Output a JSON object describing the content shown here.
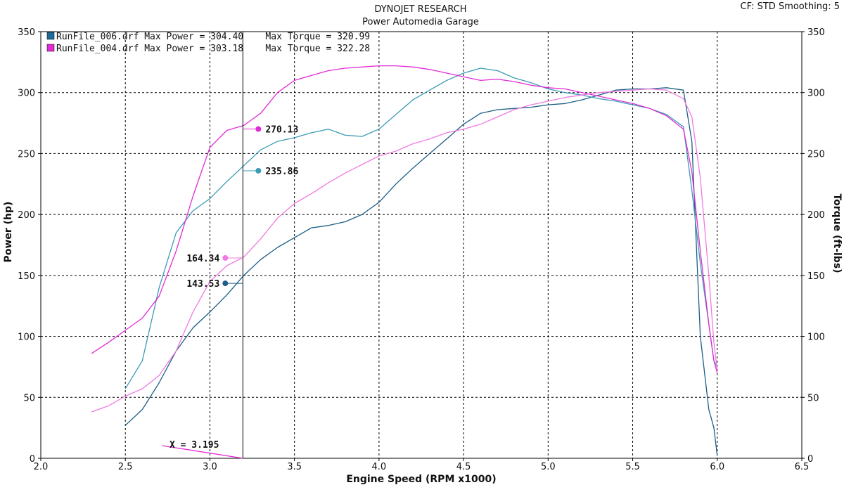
{
  "header": {
    "title": "DYNOJET RESEARCH",
    "subtitle": "Power Automedia Garage",
    "corner": "CF: STD  Smoothing: 5"
  },
  "legend": [
    {
      "swatch": "#1e6a9a",
      "text": "RunFile_006.drf Max Power = 304.40    Max Torque = 320.99"
    },
    {
      "swatch": "#e22ad6",
      "text": "RunFile_004.drf Max Power = 303.18    Max Torque = 322.28"
    }
  ],
  "cursor": {
    "label": "X = 3.195",
    "x": 3.195
  },
  "chart_data": {
    "type": "line",
    "xlabel": "Engine Speed (RPM x1000)",
    "ylabel_left": "Power (hp)",
    "ylabel_right": "Torque (ft-lbs)",
    "xlim": [
      2.0,
      6.5
    ],
    "ylim": [
      0,
      350
    ],
    "xticks": [
      "2.0",
      "2.5",
      "3.0",
      "3.5",
      "4.0",
      "4.5",
      "5.0",
      "5.5",
      "6.0",
      "6.5"
    ],
    "yticks": [
      "0",
      "50",
      "100",
      "150",
      "200",
      "250",
      "300",
      "350"
    ],
    "grid": true,
    "legend_position": "top-left",
    "series": [
      {
        "key": "r006_power",
        "color": "#1c5f86",
        "points": [
          [
            2.5,
            27
          ],
          [
            2.6,
            40
          ],
          [
            2.7,
            62
          ],
          [
            2.8,
            88
          ],
          [
            2.9,
            107
          ],
          [
            3.0,
            120
          ],
          [
            3.1,
            134
          ],
          [
            3.2,
            150
          ],
          [
            3.3,
            163
          ],
          [
            3.4,
            173
          ],
          [
            3.5,
            181
          ],
          [
            3.6,
            189
          ],
          [
            3.7,
            191
          ],
          [
            3.8,
            194
          ],
          [
            3.9,
            200
          ],
          [
            4.0,
            210
          ],
          [
            4.1,
            225
          ],
          [
            4.2,
            238
          ],
          [
            4.3,
            250
          ],
          [
            4.4,
            262
          ],
          [
            4.5,
            274
          ],
          [
            4.6,
            283
          ],
          [
            4.7,
            286
          ],
          [
            4.8,
            287
          ],
          [
            4.9,
            288
          ],
          [
            5.0,
            290
          ],
          [
            5.1,
            291
          ],
          [
            5.2,
            294
          ],
          [
            5.3,
            298
          ],
          [
            5.4,
            302
          ],
          [
            5.5,
            303
          ],
          [
            5.6,
            303
          ],
          [
            5.7,
            304
          ],
          [
            5.8,
            302
          ],
          [
            5.85,
            260
          ],
          [
            5.9,
            100
          ],
          [
            5.95,
            40
          ],
          [
            5.98,
            25
          ],
          [
            6.0,
            2
          ]
        ]
      },
      {
        "key": "r006_torque",
        "color": "#3a9bb5",
        "points": [
          [
            2.5,
            57
          ],
          [
            2.6,
            80
          ],
          [
            2.7,
            140
          ],
          [
            2.8,
            185
          ],
          [
            2.9,
            203
          ],
          [
            3.0,
            213
          ],
          [
            3.1,
            227
          ],
          [
            3.2,
            240
          ],
          [
            3.3,
            253
          ],
          [
            3.4,
            260
          ],
          [
            3.5,
            263
          ],
          [
            3.6,
            267
          ],
          [
            3.7,
            270
          ],
          [
            3.8,
            265
          ],
          [
            3.9,
            264
          ],
          [
            4.0,
            270
          ],
          [
            4.1,
            282
          ],
          [
            4.2,
            294
          ],
          [
            4.3,
            302
          ],
          [
            4.4,
            310
          ],
          [
            4.5,
            316
          ],
          [
            4.6,
            320
          ],
          [
            4.7,
            318
          ],
          [
            4.8,
            312
          ],
          [
            4.9,
            308
          ],
          [
            5.0,
            303
          ],
          [
            5.1,
            300
          ],
          [
            5.2,
            298
          ],
          [
            5.3,
            295
          ],
          [
            5.4,
            293
          ],
          [
            5.5,
            290
          ],
          [
            5.6,
            287
          ],
          [
            5.7,
            282
          ],
          [
            5.8,
            272
          ],
          [
            5.85,
            220
          ],
          [
            5.9,
            160
          ],
          [
            5.95,
            110
          ],
          [
            5.98,
            80
          ],
          [
            6.0,
            75
          ]
        ]
      },
      {
        "key": "r004_torque",
        "color": "#e22ad6",
        "points": [
          [
            2.3,
            86
          ],
          [
            2.4,
            95
          ],
          [
            2.5,
            105
          ],
          [
            2.6,
            115
          ],
          [
            2.7,
            133
          ],
          [
            2.8,
            170
          ],
          [
            2.9,
            215
          ],
          [
            3.0,
            255
          ],
          [
            3.1,
            269
          ],
          [
            3.2,
            273
          ],
          [
            3.3,
            283
          ],
          [
            3.4,
            300
          ],
          [
            3.5,
            310
          ],
          [
            3.6,
            314
          ],
          [
            3.7,
            318
          ],
          [
            3.8,
            320
          ],
          [
            3.9,
            321
          ],
          [
            4.0,
            322
          ],
          [
            4.1,
            322
          ],
          [
            4.2,
            321
          ],
          [
            4.3,
            319
          ],
          [
            4.4,
            316
          ],
          [
            4.5,
            313
          ],
          [
            4.6,
            310
          ],
          [
            4.7,
            311
          ],
          [
            4.8,
            309
          ],
          [
            4.9,
            306
          ],
          [
            5.0,
            304
          ],
          [
            5.1,
            303
          ],
          [
            5.2,
            300
          ],
          [
            5.3,
            297
          ],
          [
            5.4,
            294
          ],
          [
            5.5,
            291
          ],
          [
            5.6,
            287
          ],
          [
            5.7,
            281
          ],
          [
            5.8,
            270
          ],
          [
            5.85,
            235
          ],
          [
            5.9,
            170
          ],
          [
            5.95,
            110
          ],
          [
            5.98,
            80
          ],
          [
            6.0,
            70
          ]
        ]
      },
      {
        "key": "r004_power",
        "color": "#f07ae0",
        "points": [
          [
            2.3,
            38
          ],
          [
            2.4,
            43
          ],
          [
            2.5,
            51
          ],
          [
            2.6,
            57
          ],
          [
            2.7,
            68
          ],
          [
            2.8,
            88
          ],
          [
            2.9,
            120
          ],
          [
            3.0,
            145
          ],
          [
            3.1,
            158
          ],
          [
            3.2,
            165
          ],
          [
            3.3,
            180
          ],
          [
            3.4,
            197
          ],
          [
            3.5,
            209
          ],
          [
            3.6,
            217
          ],
          [
            3.7,
            226
          ],
          [
            3.8,
            234
          ],
          [
            3.9,
            241
          ],
          [
            4.0,
            248
          ],
          [
            4.1,
            252
          ],
          [
            4.2,
            258
          ],
          [
            4.3,
            262
          ],
          [
            4.4,
            267
          ],
          [
            4.5,
            270
          ],
          [
            4.6,
            274
          ],
          [
            4.7,
            280
          ],
          [
            4.8,
            286
          ],
          [
            4.9,
            290
          ],
          [
            5.0,
            293
          ],
          [
            5.1,
            296
          ],
          [
            5.2,
            298
          ],
          [
            5.3,
            300
          ],
          [
            5.4,
            301
          ],
          [
            5.5,
            302
          ],
          [
            5.6,
            303
          ],
          [
            5.7,
            302
          ],
          [
            5.8,
            295
          ],
          [
            5.85,
            280
          ],
          [
            5.9,
            230
          ],
          [
            5.95,
            150
          ],
          [
            5.98,
            95
          ],
          [
            6.0,
            72
          ]
        ]
      }
    ],
    "markers": [
      {
        "label": "270.13",
        "value": 270.13,
        "x": 3.195,
        "color": "#e22ad6",
        "side": "right"
      },
      {
        "label": "235.86",
        "value": 235.86,
        "x": 3.195,
        "color": "#3a9bb5",
        "side": "right"
      },
      {
        "label": "164.34",
        "value": 164.34,
        "x": 3.195,
        "color": "#f07ae0",
        "side": "left"
      },
      {
        "label": "143.53",
        "value": 143.53,
        "x": 3.195,
        "color": "#1c5f86",
        "side": "left"
      }
    ]
  }
}
